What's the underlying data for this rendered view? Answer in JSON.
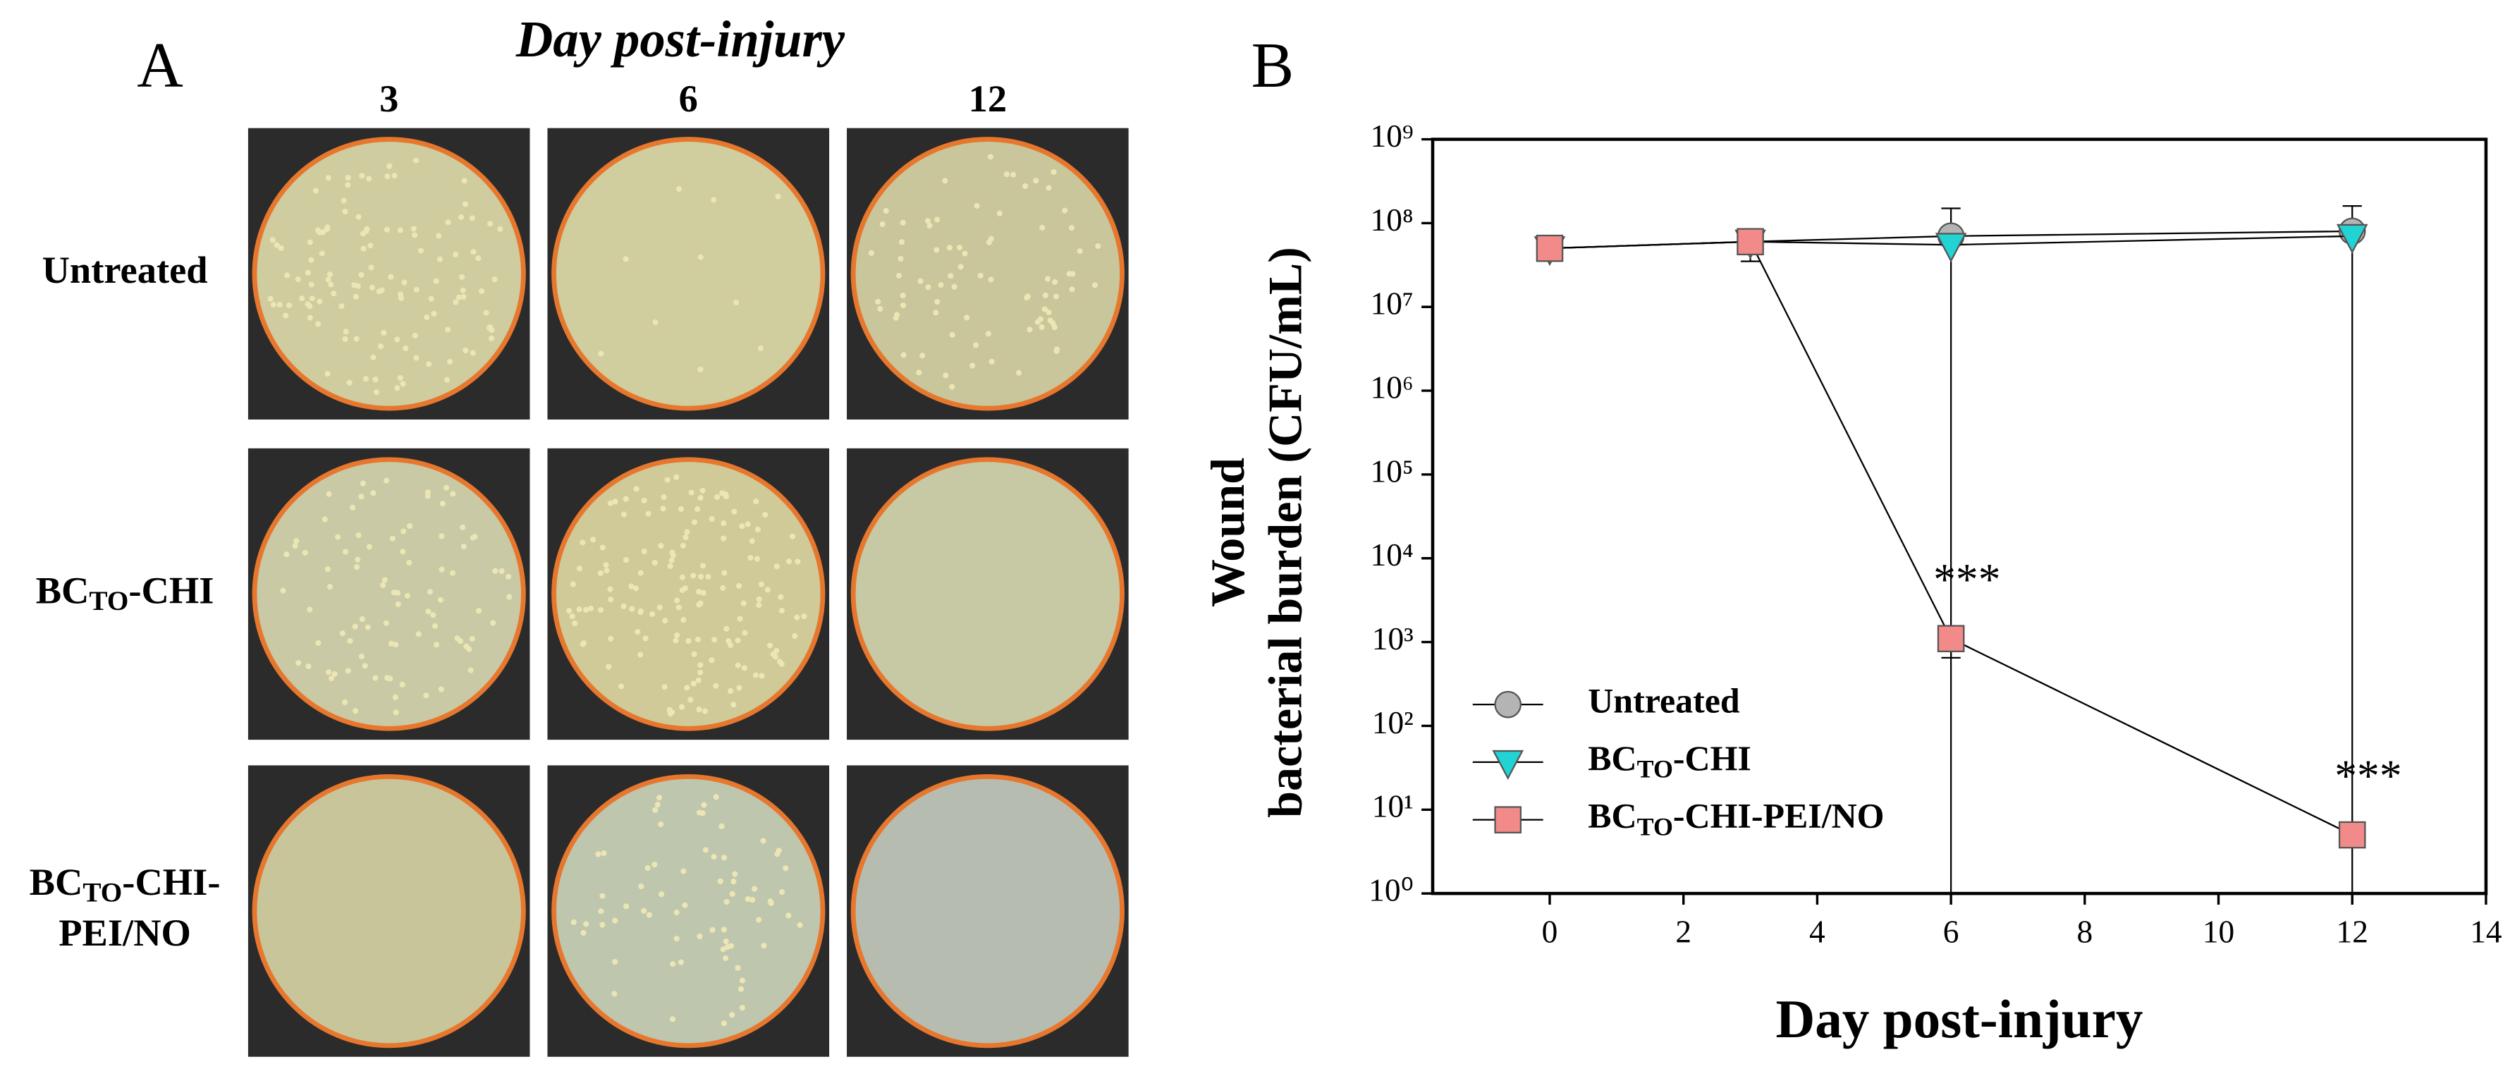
{
  "panel_a": {
    "label": "A",
    "title": "Day post-injury",
    "columns": [
      "3",
      "6",
      "12"
    ],
    "rows": [
      {
        "lines": [
          "Untreated"
        ]
      },
      {
        "lines": [
          "BCTO-CHI"
        ],
        "subscript": "TO"
      },
      {
        "lines": [
          "BCTO-CHI-",
          "PEI/NO"
        ],
        "subscript": "TO"
      }
    ]
  },
  "chart_data": {
    "type": "line",
    "panel_label": "B",
    "xlabel": "Day post-injury",
    "ylabel": [
      "Wound",
      "bacterial burden (CFU/mL)"
    ],
    "log_y": true,
    "xlim": [
      -1.75,
      14
    ],
    "xticks": [
      0,
      2,
      4,
      6,
      8,
      10,
      12,
      14
    ],
    "ylim": [
      1,
      1000000000
    ],
    "yticks": [
      {
        "value": 1,
        "label": "10⁰"
      },
      {
        "value": 10,
        "label": "10¹"
      },
      {
        "value": 100,
        "label": "10²"
      },
      {
        "value": 1000,
        "label": "10³"
      },
      {
        "value": 10000,
        "label": "10⁴"
      },
      {
        "value": 100000,
        "label": "10⁵"
      },
      {
        "value": 1000000,
        "label": "10⁶"
      },
      {
        "value": 10000000,
        "label": "10⁷"
      },
      {
        "value": 100000000,
        "label": "10⁸"
      },
      {
        "value": 1000000000,
        "label": "10⁹"
      }
    ],
    "legend": "lower-left",
    "series": [
      {
        "name": "Untreated",
        "marker": "circle",
        "color": "#b4b4b4",
        "x": [
          0,
          3,
          6,
          12
        ],
        "values": [
          50000000,
          60000000,
          70000000,
          80000000
        ],
        "errors": [
          null,
          25000000,
          80000000,
          80000000
        ]
      },
      {
        "name": "BCTO-CHI",
        "subscript": "TO",
        "marker": "triangle-down",
        "color": "#22d3d3",
        "x": [
          0,
          3,
          6,
          12
        ],
        "values": [
          50000000,
          60000000,
          55000000,
          70000000
        ],
        "errors": [
          null,
          null,
          null,
          null
        ]
      },
      {
        "name": "BCTO-CHI-PEI/NO",
        "subscript": "TO",
        "marker": "square",
        "color": "#f28a8a",
        "x": [
          0,
          3,
          6,
          12
        ],
        "values": [
          50000000,
          60000000,
          1100,
          5
        ],
        "errors": [
          null,
          null,
          450,
          null
        ]
      }
    ],
    "annotations": [
      "***",
      "***"
    ]
  }
}
